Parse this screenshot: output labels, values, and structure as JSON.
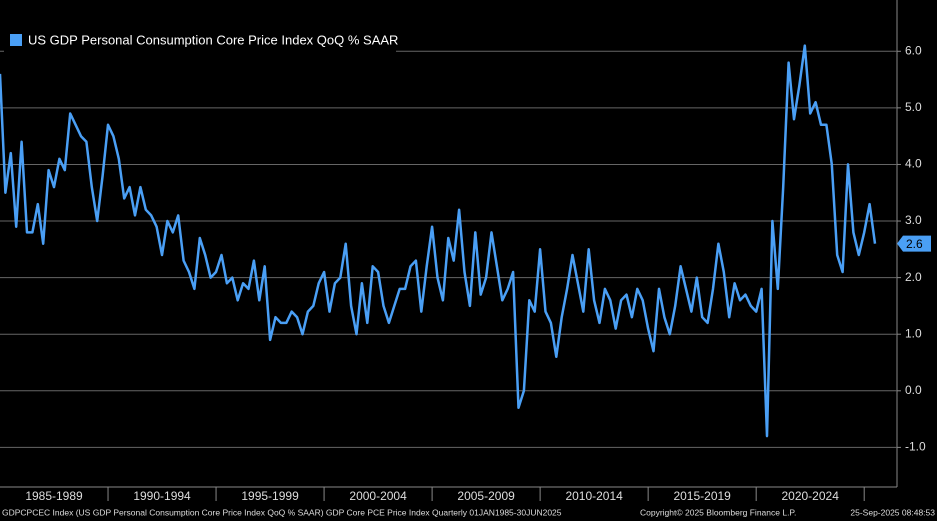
{
  "chart_data": {
    "type": "line",
    "legend": "US GDP Personal Consumption Core Price Index QoQ % SAAR",
    "color": "#4a9ff5",
    "period_labels": [
      "1985-1989",
      "1990-1994",
      "1995-1999",
      "2000-2004",
      "2005-2009",
      "2010-2014",
      "2015-2019",
      "2020-2024"
    ],
    "values": [
      5.6,
      3.5,
      4.2,
      2.9,
      4.4,
      2.8,
      2.8,
      3.3,
      2.6,
      3.9,
      3.6,
      4.1,
      3.9,
      4.9,
      4.7,
      4.5,
      4.4,
      3.6,
      3.0,
      3.8,
      4.7,
      4.5,
      4.1,
      3.4,
      3.6,
      3.1,
      3.6,
      3.2,
      3.1,
      2.9,
      2.4,
      3.0,
      2.8,
      3.1,
      2.3,
      2.1,
      1.8,
      2.7,
      2.4,
      2.0,
      2.1,
      2.4,
      1.9,
      2.0,
      1.6,
      1.9,
      1.8,
      2.3,
      1.6,
      2.2,
      0.9,
      1.3,
      1.2,
      1.2,
      1.4,
      1.3,
      1.0,
      1.4,
      1.5,
      1.9,
      2.1,
      1.4,
      1.9,
      2.0,
      2.6,
      1.5,
      1.0,
      1.9,
      1.2,
      2.2,
      2.1,
      1.5,
      1.2,
      1.5,
      1.8,
      1.8,
      2.2,
      2.3,
      1.4,
      2.2,
      2.9,
      2.0,
      1.6,
      2.7,
      2.3,
      3.2,
      2.1,
      1.5,
      2.8,
      1.7,
      2.0,
      2.8,
      2.2,
      1.6,
      1.8,
      2.1,
      -0.3,
      0.0,
      1.6,
      1.4,
      2.5,
      1.4,
      1.2,
      0.6,
      1.3,
      1.8,
      2.4,
      1.9,
      1.4,
      2.5,
      1.6,
      1.2,
      1.8,
      1.6,
      1.1,
      1.6,
      1.7,
      1.3,
      1.8,
      1.6,
      1.1,
      0.7,
      1.8,
      1.3,
      1.0,
      1.5,
      2.2,
      1.8,
      1.4,
      2.0,
      1.3,
      1.2,
      1.8,
      2.6,
      2.1,
      1.3,
      1.9,
      1.6,
      1.7,
      1.5,
      1.4,
      1.8,
      -0.8,
      3.0,
      1.8,
      3.6,
      5.8,
      4.8,
      5.4,
      6.1,
      4.9,
      5.1,
      4.7,
      4.7,
      4.0,
      2.4,
      2.1,
      4.0,
      2.8,
      2.4,
      2.8,
      3.3,
      2.6
    ],
    "ylim": [
      -1.7,
      6.8
    ],
    "yticks": [
      {
        "value": -1,
        "label": "-1.0"
      },
      {
        "value": 0,
        "label": "0.0"
      },
      {
        "value": 1,
        "label": "1.0"
      },
      {
        "value": 2,
        "label": "2.0"
      },
      {
        "value": 3,
        "label": "3.0"
      },
      {
        "value": 4,
        "label": "4.0"
      },
      {
        "value": 5,
        "label": "5.0"
      },
      {
        "value": 6,
        "label": "6.0"
      }
    ],
    "grid": true,
    "footer": {
      "source": "GDPCPCEC Index (US GDP Personal Consumption Core Price Index QoQ % SAAR) GDP Core PCE Price Index  Quarterly 01JAN1985-30JUN2025",
      "copyright": "Copyright© 2025 Bloomberg Finance L.P.",
      "timestamp": "25-Sep-2025 08:48:53"
    }
  }
}
